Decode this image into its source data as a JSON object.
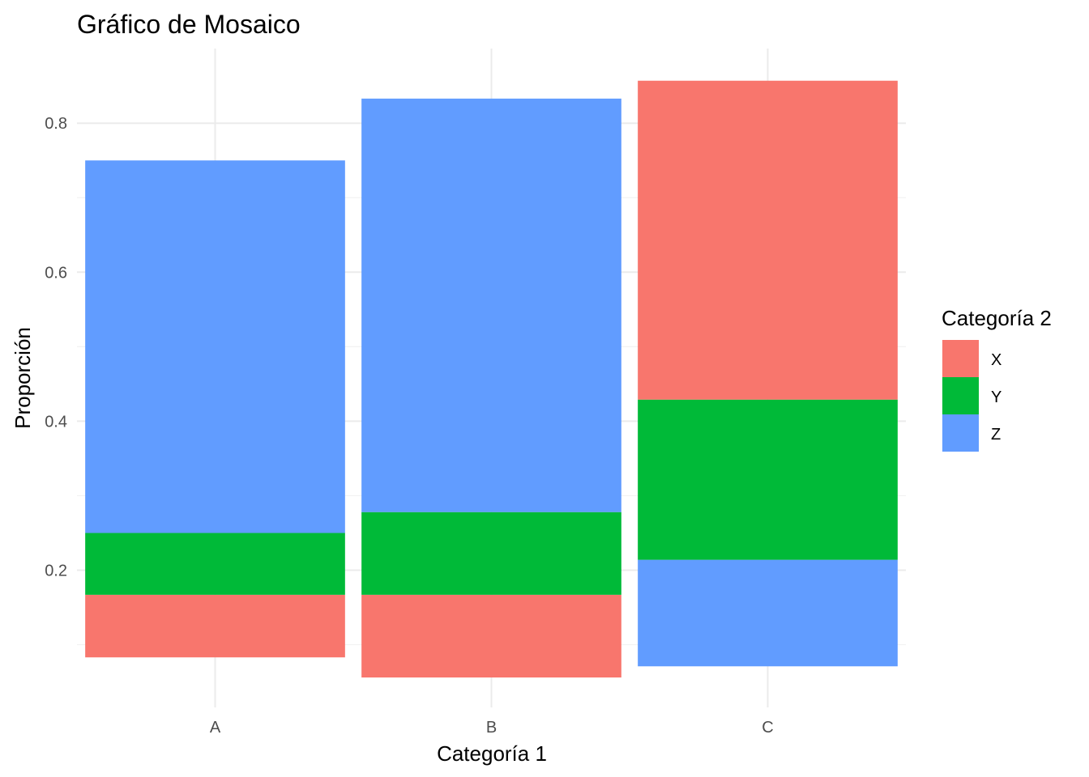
{
  "chart_data": {
    "type": "mosaic",
    "title": "Gráfico de Mosaico",
    "xlabel": "Categoría 1",
    "ylabel": "Proporción",
    "categories": [
      "A",
      "B",
      "C"
    ],
    "ylim": [
      0.05,
      0.89
    ],
    "yticks": [
      0.2,
      0.4,
      0.6,
      0.8
    ],
    "grid": true,
    "legend": {
      "title": "Categoría 2",
      "position": "right",
      "entries": [
        {
          "label": "X",
          "color": "#F8766D"
        },
        {
          "label": "Y",
          "color": "#00BA38"
        },
        {
          "label": "Z",
          "color": "#619CFF"
        }
      ]
    },
    "segments": [
      {
        "category": "A",
        "group": "X",
        "y0": 0.083,
        "y1": 0.167
      },
      {
        "category": "A",
        "group": "Y",
        "y0": 0.167,
        "y1": 0.25
      },
      {
        "category": "A",
        "group": "Z",
        "y0": 0.25,
        "y1": 0.75
      },
      {
        "category": "B",
        "group": "X",
        "y0": 0.056,
        "y1": 0.167
      },
      {
        "category": "B",
        "group": "Y",
        "y0": 0.167,
        "y1": 0.278
      },
      {
        "category": "B",
        "group": "Z",
        "y0": 0.278,
        "y1": 0.833
      },
      {
        "category": "C",
        "group": "Z",
        "y0": 0.071,
        "y1": 0.214
      },
      {
        "category": "C",
        "group": "Y",
        "y0": 0.214,
        "y1": 0.429
      },
      {
        "category": "C",
        "group": "X",
        "y0": 0.429,
        "y1": 0.857
      }
    ]
  }
}
